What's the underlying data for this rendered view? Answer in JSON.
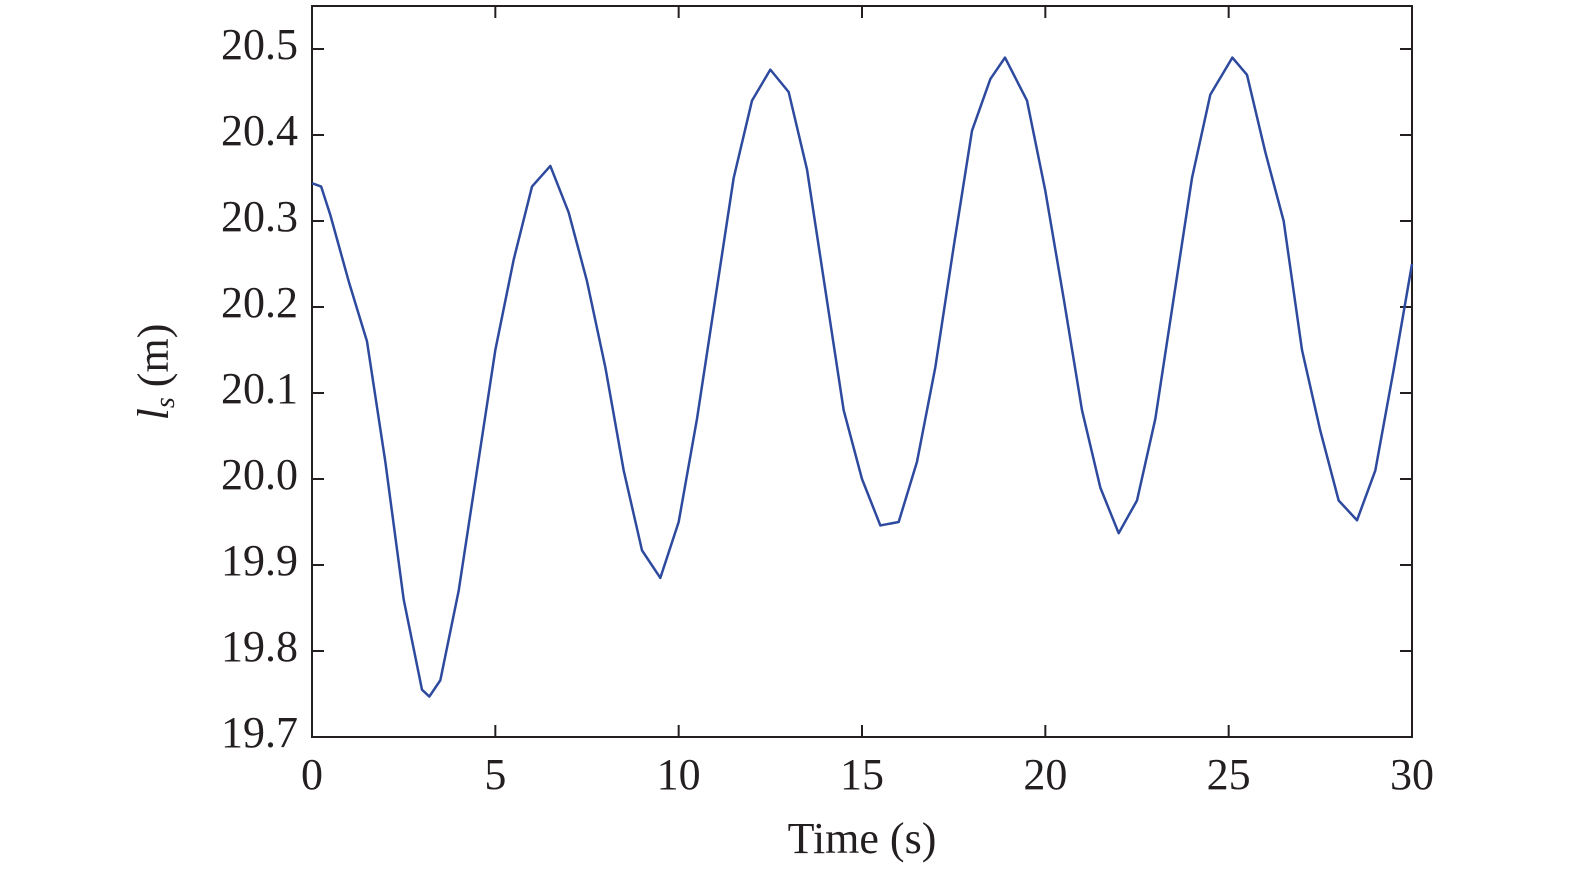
{
  "chart_data": {
    "type": "line",
    "xlabel": "Time (s)",
    "ylabel": {
      "symbol": "l",
      "subscript": "s",
      "unit": "(m)"
    },
    "x": [
      0,
      0.25,
      0.5,
      1,
      1.5,
      2,
      2.5,
      3,
      3.2,
      3.5,
      4,
      4.5,
      5,
      5.5,
      6,
      6.5,
      7,
      7.5,
      8,
      8.5,
      9,
      9.5,
      10,
      10.5,
      11,
      11.5,
      12,
      12.5,
      13,
      13.5,
      14,
      14.5,
      15,
      15.5,
      16,
      16.5,
      17,
      17.5,
      18,
      18.5,
      18.9,
      19.5,
      20,
      20.5,
      21,
      21.5,
      22,
      22.5,
      23,
      23.5,
      24,
      24.5,
      25.1,
      25.5,
      26,
      26.5,
      27,
      27.5,
      28,
      28.5,
      29,
      29.5,
      30
    ],
    "series": [
      {
        "name": "ls",
        "color": "#2e4a9e",
        "values": [
          20.344,
          20.34,
          20.307,
          20.23,
          20.16,
          20.02,
          19.86,
          19.755,
          19.747,
          19.766,
          19.87,
          20.01,
          20.15,
          20.255,
          20.34,
          20.364,
          20.31,
          20.23,
          20.13,
          20.01,
          19.917,
          19.885,
          19.95,
          20.07,
          20.21,
          20.35,
          20.44,
          20.476,
          20.45,
          20.36,
          20.22,
          20.08,
          20.0,
          19.946,
          19.95,
          20.02,
          20.13,
          20.27,
          20.405,
          20.465,
          20.49,
          20.44,
          20.335,
          20.21,
          20.08,
          19.99,
          19.937,
          19.975,
          20.07,
          20.21,
          20.35,
          20.447,
          20.49,
          20.47,
          20.38,
          20.3,
          20.15,
          20.056,
          19.975,
          19.952,
          20.01,
          20.127,
          20.25
        ]
      }
    ],
    "xlim": [
      0,
      30
    ],
    "xticks": [
      0,
      5,
      10,
      15,
      20,
      25,
      30
    ],
    "ylim": [
      19.7,
      20.55
    ],
    "yticks": [
      19.7,
      19.8,
      19.9,
      {
        "value": 20,
        "label": "20.0"
      },
      20.1,
      20.2,
      20.3,
      20.4,
      20.5
    ],
    "grid": false
  }
}
